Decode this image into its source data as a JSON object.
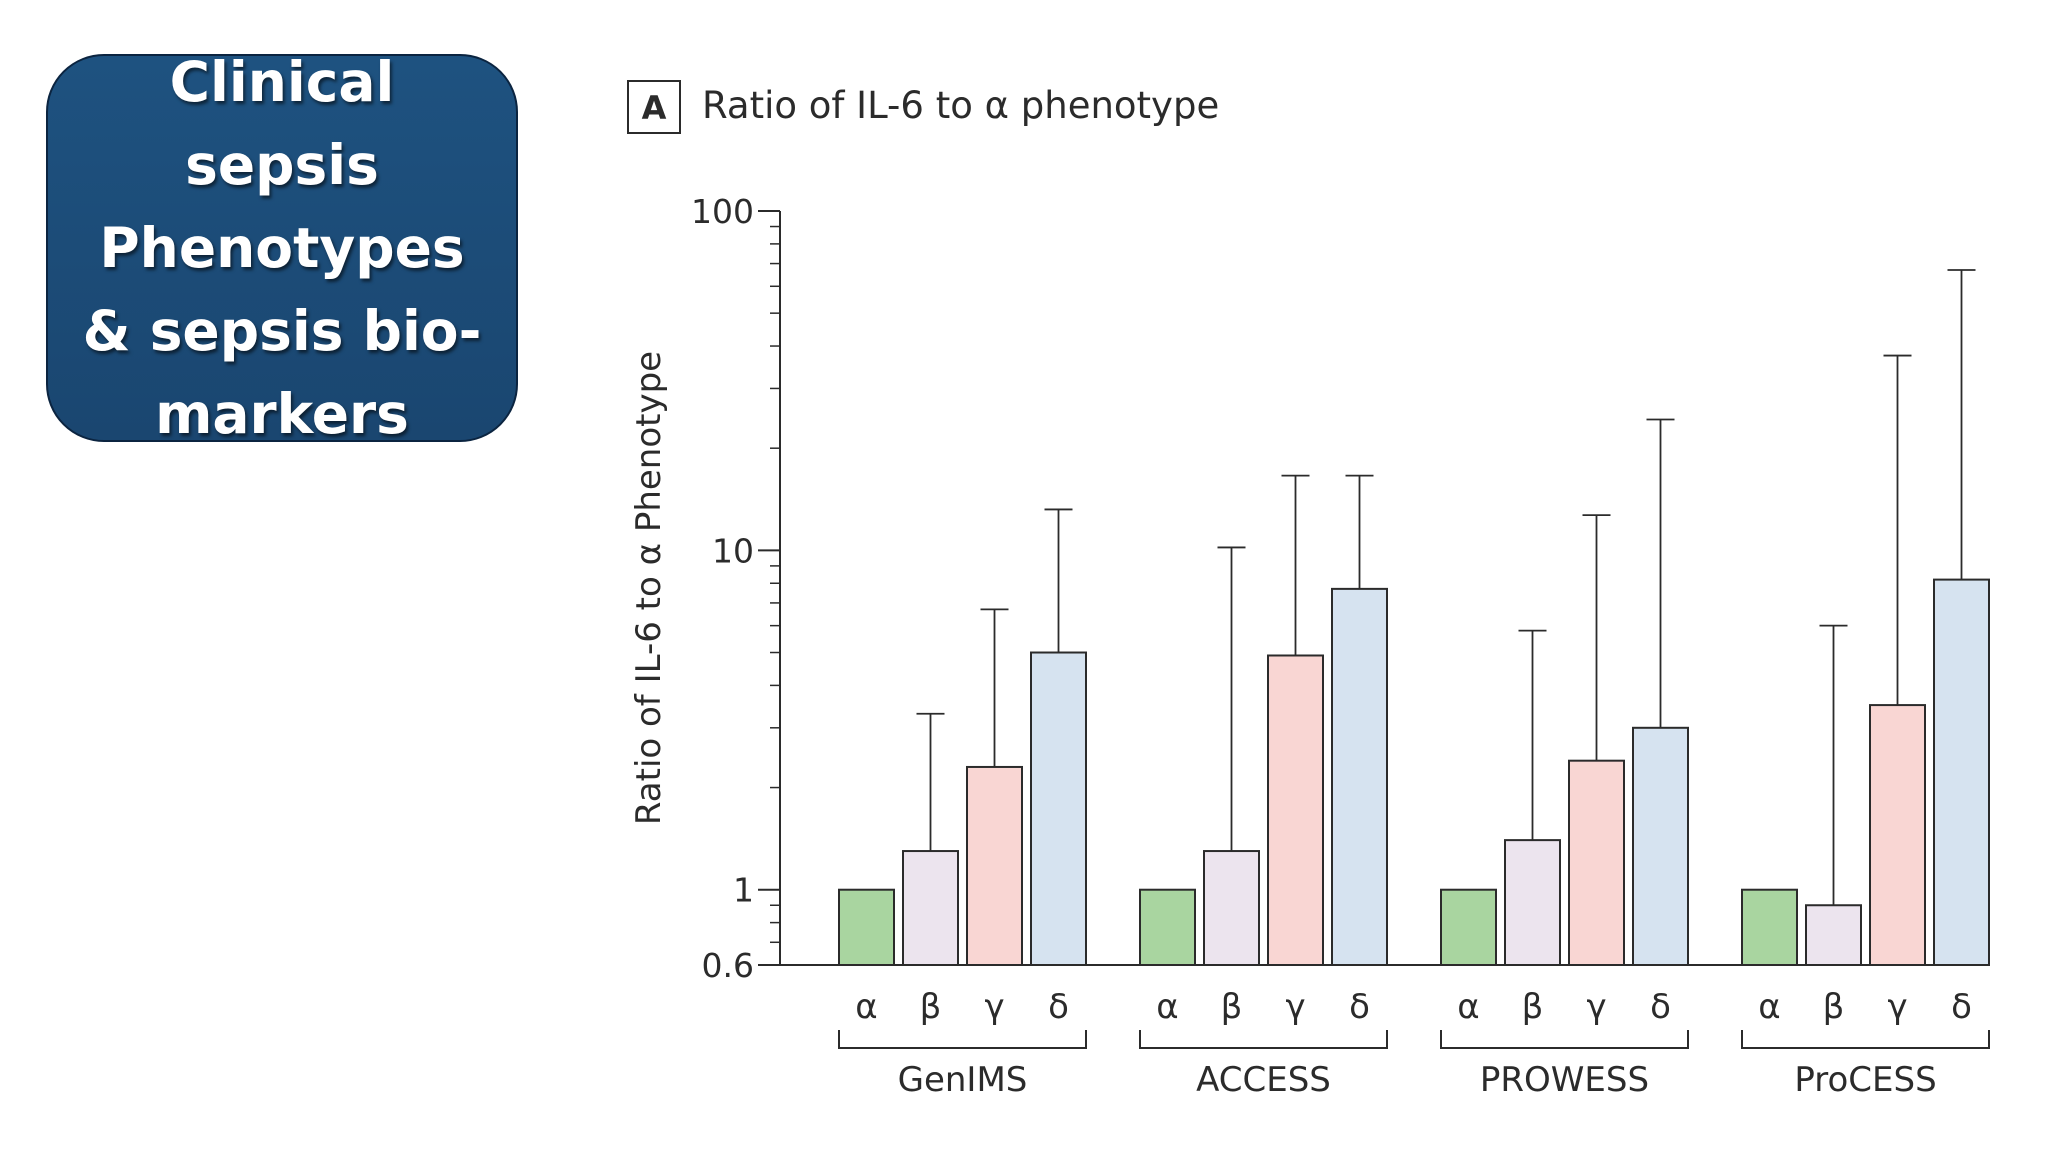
{
  "slide": {
    "title": "Clinical sepsis Phenotypes & sepsis bio-markers"
  },
  "chart_data": {
    "type": "bar",
    "panel_label": "A",
    "title": "Ratio of IL-6 to α phenotype",
    "ylabel": "Ratio of IL-6 to α Phenotype",
    "xlabel": "",
    "yscale": "log",
    "ylim": [
      0.6,
      100
    ],
    "ytick_labels": [
      "100",
      "10",
      "1",
      "0.6"
    ],
    "yticks": [
      100,
      10,
      1,
      0.6
    ],
    "groups": [
      "GenIMS",
      "ACCESS",
      "PROWESS",
      "ProCESS"
    ],
    "categories": [
      "α",
      "β",
      "γ",
      "δ"
    ],
    "colors": [
      "#a9d5a0",
      "#ece4ee",
      "#f9d6d3",
      "#d6e3f0"
    ],
    "values": [
      [
        1.0,
        1.3,
        2.3,
        5.0
      ],
      [
        1.0,
        1.3,
        4.9,
        7.7
      ],
      [
        1.0,
        1.4,
        2.4,
        3.0
      ],
      [
        1.0,
        0.9,
        3.5,
        8.2
      ]
    ],
    "error_upper": [
      [
        null,
        3.3,
        6.7,
        13.2
      ],
      [
        null,
        10.2,
        16.6,
        16.6
      ],
      [
        null,
        5.8,
        12.7,
        24.3
      ],
      [
        null,
        6.0,
        37.5,
        67.0
      ]
    ],
    "grid": false,
    "legend": "none"
  }
}
